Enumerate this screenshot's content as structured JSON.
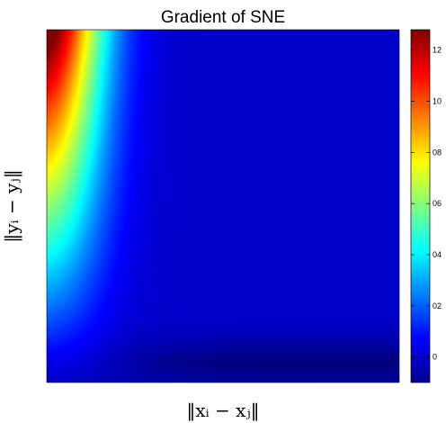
{
  "chart_data": {
    "type": "heatmap",
    "title": "Gradient of SNE",
    "xlabel": "‖xᵢ − xⱼ‖",
    "ylabel": "‖yᵢ − yⱼ‖",
    "xticks": [],
    "yticks": [],
    "colormap": "jet",
    "grid": false,
    "legend": "none",
    "colorbar": {
      "range": [
        -0.1,
        1.28
      ],
      "ticks": [
        {
          "value": 0,
          "label": "0"
        },
        {
          "value": 0.2,
          "label": "02"
        },
        {
          "value": 0.4,
          "label": "04"
        },
        {
          "value": 0.6,
          "label": "06"
        },
        {
          "value": 0.8,
          "label": "08"
        },
        {
          "value": 1.0,
          "label": "10"
        },
        {
          "value": 1.2,
          "label": "12"
        }
      ]
    },
    "description_of_values": {
      "max_region": "top-left corner, value about 1.25",
      "bulk": "most of the plane near 0",
      "min_region": "bottom-right band, value about -0.1"
    }
  }
}
